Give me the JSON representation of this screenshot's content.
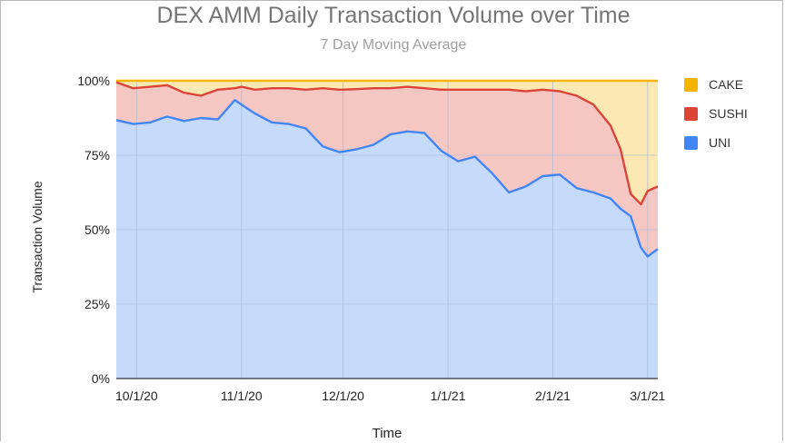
{
  "chart_data": {
    "type": "area",
    "stacked": "percent",
    "title": "DEX AMM Daily Transaction Volume over Time",
    "subtitle": "7 Day Moving Average",
    "xlabel": "Time",
    "ylabel": "Transaction Volume",
    "y_ticks": [
      "0%",
      "25%",
      "50%",
      "75%",
      "100%"
    ],
    "x_ticks": [
      "10/1/20",
      "11/1/20",
      "12/1/20",
      "1/1/21",
      "2/1/21",
      "3/1/21"
    ],
    "ylim": [
      0,
      100
    ],
    "grid": true,
    "legend_position": "right",
    "x_dates": [
      "9/25/20",
      "9/30/20",
      "10/5/20",
      "10/10/20",
      "10/15/20",
      "10/20/20",
      "10/25/20",
      "10/30/20",
      "11/1/20",
      "11/5/20",
      "11/10/20",
      "11/15/20",
      "11/20/20",
      "11/25/20",
      "11/30/20",
      "12/5/20",
      "12/10/20",
      "12/15/20",
      "12/20/20",
      "12/25/20",
      "12/30/20",
      "1/4/21",
      "1/9/21",
      "1/14/21",
      "1/19/21",
      "1/24/21",
      "1/29/21",
      "2/3/21",
      "2/8/21",
      "2/13/21",
      "2/18/21",
      "2/21/21",
      "2/24/21",
      "2/27/21",
      "3/1/21",
      "3/4/21"
    ],
    "cumulative_share_top": {
      "UNI": [
        86.8,
        85.5,
        86.0,
        88.0,
        86.5,
        87.5,
        87.0,
        93.5,
        92.0,
        89.0,
        86.0,
        85.5,
        84.0,
        78.0,
        76.0,
        77.0,
        78.5,
        82.0,
        83.0,
        82.5,
        76.5,
        73.0,
        74.5,
        69.0,
        62.5,
        64.5,
        68.0,
        68.5,
        64.0,
        62.5,
        60.5,
        57.0,
        54.5,
        44.0,
        41.0,
        43.5
      ],
      "SUSHI": [
        99.5,
        97.5,
        98.0,
        98.5,
        96.0,
        95.0,
        97.0,
        97.5,
        98.0,
        97.0,
        97.5,
        97.5,
        97.0,
        97.5,
        97.0,
        97.2,
        97.5,
        97.5,
        98.0,
        97.5,
        97.0,
        97.0,
        97.0,
        97.0,
        97.0,
        96.5,
        97.0,
        96.5,
        95.0,
        92.0,
        85.0,
        77.0,
        62.0,
        58.5,
        63.0,
        64.5
      ],
      "CAKE": [
        100,
        100,
        100,
        100,
        100,
        100,
        100,
        100,
        100,
        100,
        100,
        100,
        100,
        100,
        100,
        100,
        100,
        100,
        100,
        100,
        100,
        100,
        100,
        100,
        100,
        100,
        100,
        100,
        100,
        100,
        100,
        100,
        100,
        100,
        100,
        100
      ]
    },
    "series": [
      {
        "name": "CAKE",
        "color": "#f4b400",
        "fill": "#fce8b2"
      },
      {
        "name": "SUSHI",
        "color": "#db4437",
        "fill": "#f4c7c3"
      },
      {
        "name": "UNI",
        "color": "#4285f4",
        "fill": "#c6dafc"
      }
    ]
  }
}
